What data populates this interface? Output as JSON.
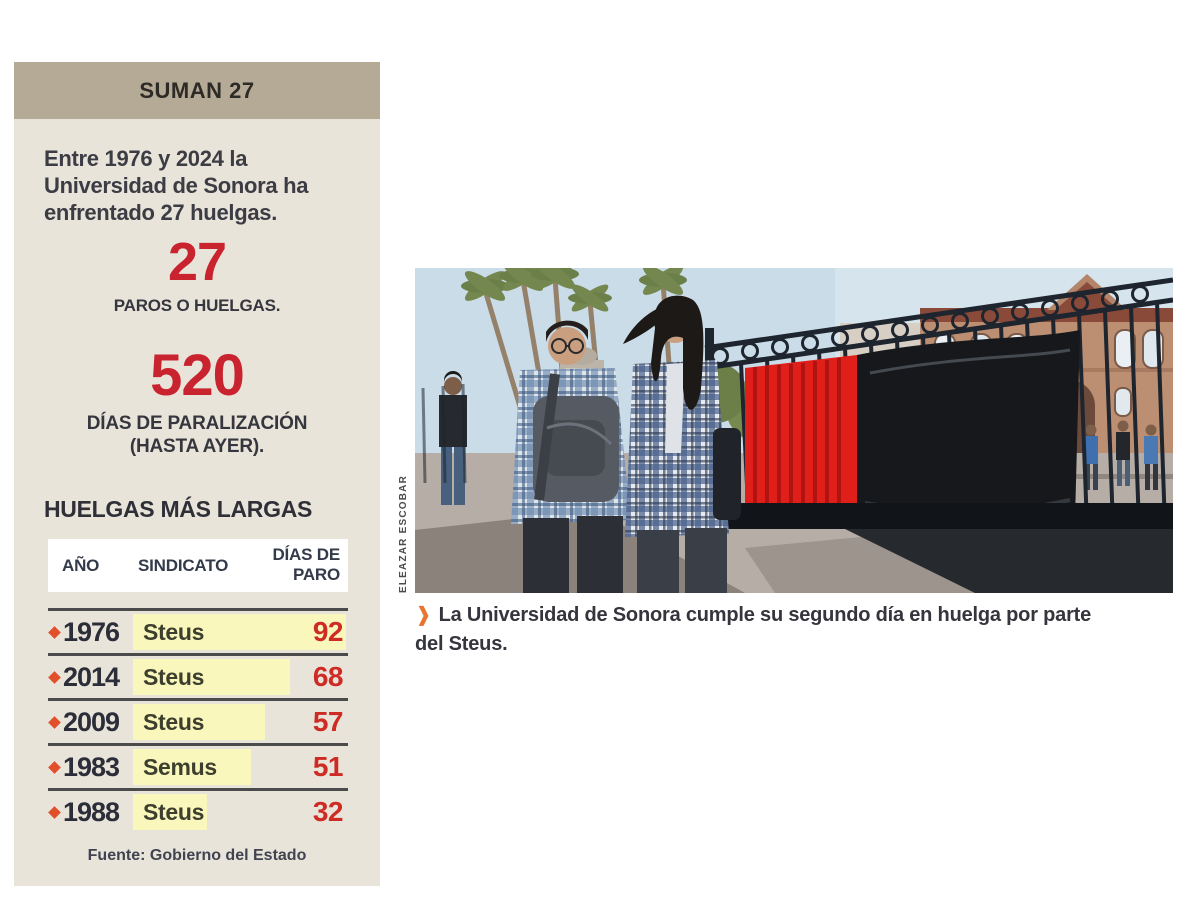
{
  "panel": {
    "header": "SUMAN 27",
    "intro": "Entre 1976 y 2024 la Universidad de Sonora ha enfrentado 27 huelgas.",
    "stat1": {
      "value": "27",
      "label": "PAROS O HUELGAS."
    },
    "stat2": {
      "value": "520",
      "label_line1": "DÍAS DE PARALIZACIÓN",
      "label_line2": "(HASTA AYER)."
    },
    "source": "Fuente: Gobierno del Estado"
  },
  "chart_data": {
    "type": "bar",
    "orientation": "horizontal",
    "title": "HUELGAS MÁS LARGAS",
    "columns": [
      "AÑO",
      "SINDICATO",
      "DÍAS DE PARO"
    ],
    "rows": [
      {
        "year": "1976",
        "sindicato": "Steus",
        "dias": 92
      },
      {
        "year": "2014",
        "sindicato": "Steus",
        "dias": 68
      },
      {
        "year": "2009",
        "sindicato": "Steus",
        "dias": 57
      },
      {
        "year": "1983",
        "sindicato": "Semus",
        "dias": 51
      },
      {
        "year": "1988",
        "sindicato": "Steus",
        "dias": 32
      }
    ],
    "value_axis_max": 92,
    "bar_color": "#faf7bc",
    "value_color": "#ce2b24"
  },
  "photo": {
    "credit": "ELEAZAR ESCOBAR",
    "caption_marker": "❱",
    "caption": "La Universidad de Sonora cumple su segundo día en huelga por parte del Steus."
  },
  "colors": {
    "panel_bg": "#e9e4da",
    "header_bar": "#b5aa96",
    "accent_red": "#c8232e",
    "highlight_yellow": "#faf7bc",
    "bullet_orange": "#e0512b",
    "caption_marker_orange": "#e8742f",
    "flag_red": "#e01f1a",
    "flag_black": "#16181c"
  }
}
